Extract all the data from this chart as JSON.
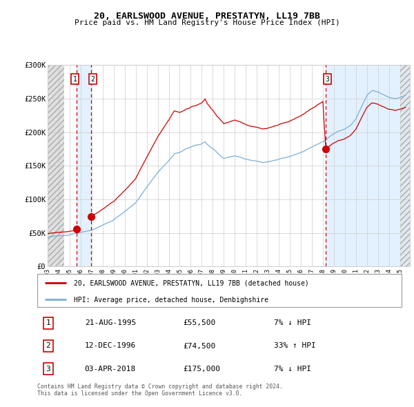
{
  "title": "20, EARLSWOOD AVENUE, PRESTATYN, LL19 7BB",
  "subtitle": "Price paid vs. HM Land Registry's House Price Index (HPI)",
  "legend_line1": "20, EARLSWOOD AVENUE, PRESTATYN, LL19 7BB (detached house)",
  "legend_line2": "HPI: Average price, detached house, Denbighshire",
  "transactions": [
    {
      "num": "1",
      "date": "21-AUG-1995",
      "price": "£55,500",
      "pct": "7% ↓ HPI",
      "year": 1995.64,
      "val": 55500
    },
    {
      "num": "2",
      "date": "12-DEC-1996",
      "price": "£74,500",
      "pct": "33% ↑ HPI",
      "year": 1996.95,
      "val": 74500
    },
    {
      "num": "3",
      "date": "03-APR-2018",
      "price": "£175,000",
      "pct": "7% ↓ HPI",
      "year": 2018.26,
      "val": 175000
    }
  ],
  "footnote1": "Contains HM Land Registry data © Crown copyright and database right 2024.",
  "footnote2": "This data is licensed under the Open Government Licence v3.0.",
  "ylim": [
    0,
    300000
  ],
  "yticks": [
    0,
    50000,
    100000,
    150000,
    200000,
    250000,
    300000
  ],
  "ytick_labels": [
    "£0",
    "£50K",
    "£100K",
    "£150K",
    "£200K",
    "£250K",
    "£300K"
  ],
  "background_color": "#ffffff",
  "grid_color": "#cccccc",
  "hpi_line_color": "#7bafd4",
  "price_line_color": "#cc0000",
  "hatch_bg_color": "#e8e8e8",
  "sale_bg_color": "#ddeeff",
  "xmin": 1993.0,
  "xmax": 2025.9
}
